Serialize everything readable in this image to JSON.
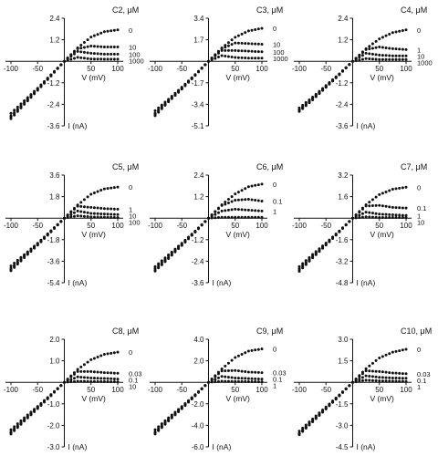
{
  "figure": {
    "panel_count": 9,
    "marker_shape": "filled-circle",
    "line_color": "#111111"
  },
  "chart_data": [
    {
      "type": "line",
      "title": "C2, μM",
      "xlabel": "V (mV)",
      "ylabel": "I (nA)",
      "xlim": [
        -100,
        100
      ],
      "ylim": [
        -3.6,
        2.4
      ],
      "xticks": [
        -100,
        -50,
        50,
        100
      ],
      "xtick_labels": [
        "-100",
        "-50",
        "50",
        "100"
      ],
      "yticks": [
        2.4,
        1.2,
        -1.2,
        -2.4,
        -3.6
      ],
      "ytick_labels": [
        "2.4",
        "1.2",
        "-1.2",
        "-2.4",
        "-3.6"
      ],
      "x": [
        -100,
        -75,
        -50,
        -25,
        0,
        25,
        50,
        75,
        100
      ],
      "series": [
        {
          "name": "0",
          "values": [
            -2.9,
            -2.2,
            -1.5,
            -0.75,
            0,
            0.75,
            1.35,
            1.65,
            1.75
          ]
        },
        {
          "name": "10",
          "values": [
            -3.05,
            -2.3,
            -1.55,
            -0.78,
            0,
            0.7,
            0.85,
            0.8,
            0.8
          ]
        },
        {
          "name": "100",
          "values": [
            -3.1,
            -2.35,
            -1.58,
            -0.8,
            0,
            0.55,
            0.45,
            0.4,
            0.4
          ]
        },
        {
          "name": "1000",
          "values": [
            -3.2,
            -2.4,
            -1.62,
            -0.82,
            0,
            0.22,
            0.13,
            0.12,
            0.12
          ]
        }
      ]
    },
    {
      "type": "line",
      "title": "C3, μM",
      "xlabel": "V (mV)",
      "ylabel": "",
      "xlim": [
        -100,
        100
      ],
      "ylim": [
        -5.1,
        3.4
      ],
      "xticks": [
        -100,
        -50,
        50,
        100
      ],
      "xtick_labels": [
        "-100",
        "-50",
        "50",
        "100"
      ],
      "yticks": [
        3.4,
        1.7,
        -1.7,
        -3.4,
        -5.1
      ],
      "ytick_labels": [
        "3.4",
        "1.7",
        "-1.7",
        "-3.4",
        "-5.1"
      ],
      "x": [
        -100,
        -75,
        -50,
        -25,
        0,
        25,
        50,
        75,
        100
      ],
      "series": [
        {
          "name": "0",
          "values": [
            -3.9,
            -3.0,
            -2.05,
            -1.05,
            0,
            1.05,
            1.9,
            2.4,
            2.6
          ]
        },
        {
          "name": "10",
          "values": [
            -4.1,
            -3.1,
            -2.1,
            -1.08,
            0,
            1.0,
            1.45,
            1.4,
            1.35
          ]
        },
        {
          "name": "100",
          "values": [
            -4.2,
            -3.15,
            -2.15,
            -1.1,
            0,
            0.85,
            0.85,
            0.8,
            0.75
          ]
        },
        {
          "name": "1000",
          "values": [
            -4.3,
            -3.2,
            -2.2,
            -1.12,
            0,
            0.45,
            0.3,
            0.25,
            0.25
          ]
        }
      ]
    },
    {
      "type": "line",
      "title": "C4, μM",
      "xlabel": "V (mV)",
      "ylabel": "I (nA)",
      "xlim": [
        -100,
        100
      ],
      "ylim": [
        -3.6,
        2.4
      ],
      "xticks": [
        -100,
        -50,
        50,
        100
      ],
      "xtick_labels": [
        "-100",
        "-50",
        "50",
        "100"
      ],
      "yticks": [
        2.4,
        1.2,
        -1.2,
        -2.4,
        -3.6
      ],
      "ytick_labels": [
        "2.4",
        "1.2",
        "-1.2",
        "-2.4",
        "-3.6"
      ],
      "x": [
        -100,
        -75,
        -50,
        -25,
        0,
        25,
        50,
        75,
        100
      ],
      "series": [
        {
          "name": "0",
          "values": [
            -2.6,
            -2.0,
            -1.35,
            -0.7,
            0,
            0.7,
            1.25,
            1.6,
            1.75
          ]
        },
        {
          "name": "1",
          "values": [
            -2.7,
            -2.05,
            -1.4,
            -0.72,
            0,
            0.65,
            0.8,
            0.7,
            0.65
          ]
        },
        {
          "name": "10",
          "values": [
            -2.75,
            -2.1,
            -1.42,
            -0.73,
            0,
            0.45,
            0.35,
            0.3,
            0.3
          ]
        },
        {
          "name": "1000",
          "values": [
            -2.8,
            -2.15,
            -1.45,
            -0.75,
            0,
            0.15,
            0.1,
            0.1,
            0.1
          ]
        }
      ]
    },
    {
      "type": "line",
      "title": "C5, μM",
      "xlabel": "V (mV)",
      "ylabel": "I (nA)",
      "xlim": [
        -100,
        100
      ],
      "ylim": [
        -5.4,
        3.6
      ],
      "xticks": [
        -100,
        -50,
        50,
        100
      ],
      "xtick_labels": [
        "-100",
        "-50",
        "50",
        "100"
      ],
      "yticks": [
        3.6,
        1.8,
        -1.8,
        -3.6,
        -5.4
      ],
      "ytick_labels": [
        "3.6",
        "1.8",
        "-1.8",
        "-3.6",
        "-5.4"
      ],
      "x": [
        -100,
        -75,
        -50,
        -25,
        0,
        25,
        50,
        75,
        100
      ],
      "series": [
        {
          "name": "0",
          "values": [
            -4.0,
            -3.05,
            -2.1,
            -1.05,
            0,
            1.1,
            2.0,
            2.45,
            2.6
          ]
        },
        {
          "name": "1",
          "values": [
            -4.2,
            -3.15,
            -2.15,
            -1.1,
            0,
            1.0,
            0.9,
            0.8,
            0.75
          ]
        },
        {
          "name": "10",
          "values": [
            -4.3,
            -3.2,
            -2.2,
            -1.12,
            0,
            0.6,
            0.4,
            0.35,
            0.3
          ]
        },
        {
          "name": "100",
          "values": [
            -4.4,
            -3.3,
            -2.25,
            -1.15,
            0,
            0.2,
            0.1,
            0.08,
            0.05
          ]
        }
      ]
    },
    {
      "type": "line",
      "title": "C6, μM",
      "xlabel": "V (mV)",
      "ylabel": "I (nA)",
      "xlim": [
        -100,
        100
      ],
      "ylim": [
        -3.6,
        2.4
      ],
      "xticks": [
        -100,
        -50,
        50,
        100
      ],
      "xtick_labels": [
        "-100",
        "-50",
        "50",
        "100"
      ],
      "yticks": [
        2.4,
        1.2,
        -1.2,
        -2.4,
        -3.6
      ],
      "ytick_labels": [
        "2.4",
        "1.2",
        "-1.2",
        "-2.4",
        "-3.6"
      ],
      "x": [
        -100,
        -75,
        -50,
        -25,
        0,
        25,
        50,
        75,
        100
      ],
      "series": [
        {
          "name": "0",
          "values": [
            -2.7,
            -2.05,
            -1.4,
            -0.72,
            0,
            0.75,
            1.35,
            1.75,
            1.9
          ]
        },
        {
          "name": "0.1",
          "values": [
            -2.8,
            -2.1,
            -1.45,
            -0.74,
            0,
            0.7,
            1.0,
            1.05,
            0.95
          ]
        },
        {
          "name": "1",
          "values": [
            -2.9,
            -2.2,
            -1.5,
            -0.77,
            0,
            0.4,
            0.5,
            0.45,
            0.4
          ]
        },
        {
          "name": "",
          "values": [
            -2.95,
            -2.25,
            -1.52,
            -0.78,
            0,
            0.05,
            0.05,
            0.05,
            0.05
          ]
        }
      ]
    },
    {
      "type": "line",
      "title": "C7, μM",
      "xlabel": "V (mV)",
      "ylabel": "I (nA)",
      "xlim": [
        -100,
        100
      ],
      "ylim": [
        -4.8,
        3.2
      ],
      "xticks": [
        -100,
        -50,
        50,
        100
      ],
      "xtick_labels": [
        "-100",
        "-50",
        "50",
        "100"
      ],
      "yticks": [
        3.2,
        1.6,
        -1.6,
        -3.2,
        -4.8
      ],
      "ytick_labels": [
        "3.2",
        "1.6",
        "-1.6",
        "-3.2",
        "-4.8"
      ],
      "x": [
        -100,
        -75,
        -50,
        -25,
        0,
        25,
        50,
        75,
        100
      ],
      "series": [
        {
          "name": "0",
          "values": [
            -3.6,
            -2.7,
            -1.85,
            -0.95,
            0,
            1.0,
            1.75,
            2.15,
            2.3
          ]
        },
        {
          "name": "0.1",
          "values": [
            -3.75,
            -2.8,
            -1.9,
            -0.98,
            0,
            0.9,
            0.95,
            0.8,
            0.75
          ]
        },
        {
          "name": "1",
          "values": [
            -3.85,
            -2.9,
            -1.95,
            -1.0,
            0,
            0.45,
            0.3,
            0.25,
            0.2
          ]
        },
        {
          "name": "10",
          "values": [
            -3.95,
            -2.95,
            -2.0,
            -1.02,
            0,
            0.1,
            0.05,
            0.05,
            0.05
          ]
        }
      ]
    },
    {
      "type": "line",
      "title": "C8, μM",
      "xlabel": "V (mV)",
      "ylabel": "I (nA)",
      "xlim": [
        -100,
        100
      ],
      "ylim": [
        -3.0,
        2.0
      ],
      "xticks": [
        -100,
        -50,
        50,
        100
      ],
      "xtick_labels": [
        "-100",
        "-50",
        "50",
        "100"
      ],
      "yticks": [
        2.0,
        1.0,
        -1.0,
        -2.0,
        -3.0
      ],
      "ytick_labels": [
        "2.0",
        "1.0",
        "-1.0",
        "-2.0",
        "-3.0"
      ],
      "x": [
        -100,
        -75,
        -50,
        -25,
        0,
        25,
        50,
        75,
        100
      ],
      "series": [
        {
          "name": "0",
          "values": [
            -2.2,
            -1.65,
            -1.12,
            -0.57,
            0,
            0.6,
            1.05,
            1.3,
            1.4
          ]
        },
        {
          "name": "0.03",
          "values": [
            -2.3,
            -1.72,
            -1.16,
            -0.59,
            0,
            0.5,
            0.5,
            0.45,
            0.42
          ]
        },
        {
          "name": "0.1",
          "values": [
            -2.35,
            -1.76,
            -1.19,
            -0.6,
            0,
            0.25,
            0.2,
            0.18,
            0.15
          ]
        },
        {
          "name": "10",
          "values": [
            -2.4,
            -1.8,
            -1.22,
            -0.62,
            0,
            0.05,
            0.04,
            0.03,
            0.02
          ]
        }
      ]
    },
    {
      "type": "line",
      "title": "C9, μM",
      "xlabel": "V (mV)",
      "ylabel": "I (nA)",
      "xlim": [
        -100,
        100
      ],
      "ylim": [
        -6.0,
        4.0
      ],
      "xticks": [
        -100,
        -50,
        50,
        100
      ],
      "xtick_labels": [
        "-100",
        "-50",
        "50",
        "100"
      ],
      "yticks": [
        4.0,
        2.0,
        -2.0,
        -4.0,
        -6.0
      ],
      "ytick_labels": [
        "4.0",
        "2.0",
        "-2.0",
        "-4.0",
        "-6.0"
      ],
      "x": [
        -100,
        -75,
        -50,
        -25,
        0,
        25,
        50,
        75,
        100
      ],
      "series": [
        {
          "name": "0",
          "values": [
            -4.4,
            -3.3,
            -2.25,
            -1.15,
            0,
            1.25,
            2.3,
            2.9,
            3.1
          ]
        },
        {
          "name": "0.03",
          "values": [
            -4.6,
            -3.45,
            -2.35,
            -1.2,
            0,
            1.05,
            1.1,
            0.95,
            0.9
          ]
        },
        {
          "name": "0.1",
          "values": [
            -4.7,
            -3.52,
            -2.4,
            -1.22,
            0,
            0.55,
            0.4,
            0.35,
            0.3
          ]
        },
        {
          "name": "1",
          "values": [
            -4.8,
            -3.6,
            -2.45,
            -1.25,
            0,
            0.1,
            0.08,
            0.06,
            0.05
          ]
        }
      ]
    },
    {
      "type": "line",
      "title": "C10, μM",
      "xlabel": "V (mV)",
      "ylabel": "I (nA)",
      "xlim": [
        -100,
        100
      ],
      "ylim": [
        -4.5,
        3.0
      ],
      "xticks": [
        -100,
        -50,
        50,
        100
      ],
      "xtick_labels": [
        "-100",
        "-50",
        "50",
        "100"
      ],
      "yticks": [
        3.0,
        1.5,
        -1.5,
        -3.0,
        -4.5
      ],
      "ytick_labels": [
        "3.0",
        "1.5",
        "-1.5",
        "-3.0",
        "-4.5"
      ],
      "x": [
        -100,
        -75,
        -50,
        -25,
        0,
        25,
        50,
        75,
        100
      ],
      "series": [
        {
          "name": "0",
          "values": [
            -3.4,
            -2.55,
            -1.72,
            -0.88,
            0,
            0.95,
            1.7,
            2.1,
            2.3
          ]
        },
        {
          "name": "0.03",
          "values": [
            -3.55,
            -2.65,
            -1.8,
            -0.92,
            0,
            0.8,
            0.75,
            0.65,
            0.6
          ]
        },
        {
          "name": "0.1",
          "values": [
            -3.6,
            -2.7,
            -1.83,
            -0.93,
            0,
            0.45,
            0.35,
            0.3,
            0.28
          ]
        },
        {
          "name": "1",
          "values": [
            -3.65,
            -2.75,
            -1.86,
            -0.95,
            0,
            0.15,
            0.1,
            0.08,
            0.06
          ]
        }
      ]
    }
  ]
}
